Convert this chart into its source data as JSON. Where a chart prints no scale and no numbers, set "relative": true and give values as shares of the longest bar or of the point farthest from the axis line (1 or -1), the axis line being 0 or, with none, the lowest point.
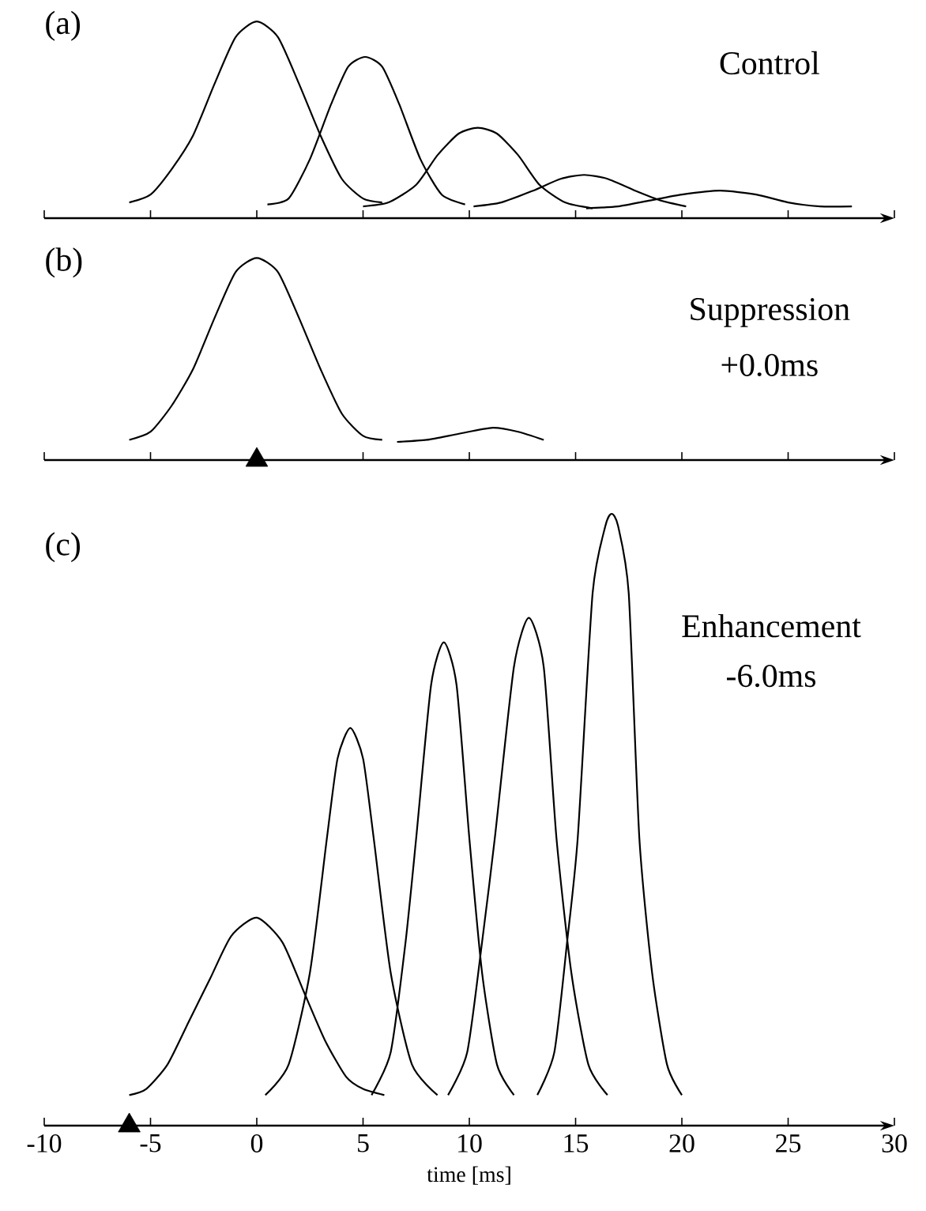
{
  "chart_data": [
    {
      "type": "line",
      "title": "(a)",
      "annotations": [
        "Control"
      ],
      "relative": true,
      "marker": "none",
      "xlim": [
        -10,
        30
      ],
      "xticks": [
        -10,
        -5,
        0,
        5,
        10,
        15,
        20,
        25,
        30
      ],
      "tick_labels": false,
      "series": [
        {
          "color": "#000000",
          "x": [
            -6.0,
            -5.0,
            -4.0,
            -3.0,
            -2.0,
            -1.0,
            0,
            1.0,
            2.0,
            3.0,
            4.0,
            5.0,
            5.9
          ],
          "values": [
            0.08,
            0.12,
            0.25,
            0.42,
            0.68,
            0.92,
            1.0,
            0.92,
            0.68,
            0.42,
            0.2,
            0.1,
            0.08
          ]
        },
        {
          "color": "#000000",
          "x": [
            0.5,
            1.5,
            2.5,
            3.5,
            4.3,
            5.1,
            5.9,
            6.7,
            7.7,
            8.7,
            9.8
          ],
          "values": [
            0.07,
            0.1,
            0.3,
            0.58,
            0.77,
            0.82,
            0.77,
            0.58,
            0.3,
            0.12,
            0.07
          ]
        },
        {
          "color": "#000000",
          "x": [
            5.0,
            6.2,
            7.5,
            8.5,
            9.5,
            10.4,
            11.3,
            12.3,
            13.3,
            14.5,
            15.8
          ],
          "values": [
            0.06,
            0.08,
            0.17,
            0.32,
            0.43,
            0.46,
            0.43,
            0.32,
            0.17,
            0.08,
            0.05
          ]
        },
        {
          "color": "#000000",
          "x": [
            10.2,
            11.5,
            13,
            14.3,
            15.4,
            16.5,
            17.8,
            19,
            20.2
          ],
          "values": [
            0.06,
            0.08,
            0.14,
            0.2,
            0.22,
            0.2,
            0.14,
            0.09,
            0.06
          ]
        },
        {
          "color": "#000000",
          "x": [
            15.5,
            17,
            18.5,
            20,
            21.8,
            23.5,
            25,
            26.5,
            28.0
          ],
          "values": [
            0.05,
            0.06,
            0.09,
            0.12,
            0.14,
            0.12,
            0.08,
            0.06,
            0.06
          ]
        }
      ]
    },
    {
      "type": "line",
      "title": "(b)",
      "annotations": [
        "Suppression",
        "+0.0ms"
      ],
      "relative": true,
      "marker": "none",
      "xlim": [
        -10,
        30
      ],
      "xticks": [
        -10,
        -5,
        0,
        5,
        10,
        15,
        20,
        25,
        30
      ],
      "tick_labels": false,
      "series": [
        {
          "color": "#000000",
          "x": [
            -6.0,
            -5.0,
            -4.0,
            -3.0,
            -2.0,
            -1.0,
            0,
            1.0,
            2.0,
            3.0,
            4.0,
            5.0,
            5.9
          ],
          "values": [
            0.1,
            0.14,
            0.27,
            0.45,
            0.7,
            0.93,
            1.0,
            0.93,
            0.7,
            0.45,
            0.23,
            0.12,
            0.1
          ]
        },
        {
          "color": "#000000",
          "x": [
            6.6,
            8,
            9.5,
            11.1,
            12.3,
            13.5
          ],
          "values": [
            0.09,
            0.1,
            0.13,
            0.16,
            0.14,
            0.1
          ]
        },
        {
          "type": "scatter",
          "color": "#000000",
          "marker": "triangle",
          "x": [
            0
          ],
          "values": [
            0
          ]
        }
      ]
    },
    {
      "type": "line",
      "title": "(c)",
      "annotations": [
        "Enhancement",
        "-6.0ms"
      ],
      "xlabel": "time [ms]",
      "relative": true,
      "marker": "none",
      "xlim": [
        -10,
        30
      ],
      "xticks": [
        -10,
        -5,
        0,
        5,
        10,
        15,
        20,
        25,
        30
      ],
      "tick_labels": "x",
      "series": [
        {
          "color": "#000000",
          "x": [
            -6.0,
            -5.2,
            -4.2,
            -3.2,
            -2.2,
            -1.2,
            0,
            1.2,
            2.2,
            3.2,
            4.2,
            5.0,
            6.0
          ],
          "values": [
            0.05,
            0.06,
            0.1,
            0.17,
            0.24,
            0.31,
            0.34,
            0.3,
            0.22,
            0.14,
            0.08,
            0.06,
            0.05
          ]
        },
        {
          "color": "#000000",
          "x": [
            0.4,
            1.5,
            2.5,
            3.3,
            3.8,
            4.4,
            5.0,
            5.5,
            6.3,
            7.3,
            8.5
          ],
          "values": [
            0.05,
            0.1,
            0.25,
            0.47,
            0.6,
            0.65,
            0.6,
            0.47,
            0.25,
            0.1,
            0.05
          ]
        },
        {
          "color": "#000000",
          "x": [
            5.4,
            6.3,
            7.0,
            7.5,
            8.2,
            8.8,
            9.4,
            10.0,
            10.6,
            11.3,
            12.1
          ],
          "values": [
            0.05,
            0.12,
            0.3,
            0.47,
            0.72,
            0.79,
            0.72,
            0.47,
            0.25,
            0.1,
            0.05
          ]
        },
        {
          "color": "#000000",
          "x": [
            9.0,
            9.9,
            10.6,
            11.2,
            12.1,
            12.8,
            13.5,
            14.1,
            14.8,
            15.6,
            16.5
          ],
          "values": [
            0.05,
            0.12,
            0.3,
            0.47,
            0.75,
            0.83,
            0.75,
            0.47,
            0.25,
            0.1,
            0.05
          ]
        },
        {
          "color": "#000000",
          "x": [
            13.2,
            14.0,
            14.6,
            15.1,
            15.8,
            16.4,
            16.7,
            17.0,
            17.5,
            18.0,
            18.6,
            19.3,
            20.0
          ],
          "values": [
            0.05,
            0.12,
            0.3,
            0.47,
            0.87,
            0.98,
            1.0,
            0.98,
            0.87,
            0.47,
            0.25,
            0.1,
            0.05
          ]
        },
        {
          "type": "scatter",
          "color": "#000000",
          "marker": "triangle",
          "x": [
            -6.0
          ],
          "values": [
            0
          ]
        }
      ]
    }
  ]
}
